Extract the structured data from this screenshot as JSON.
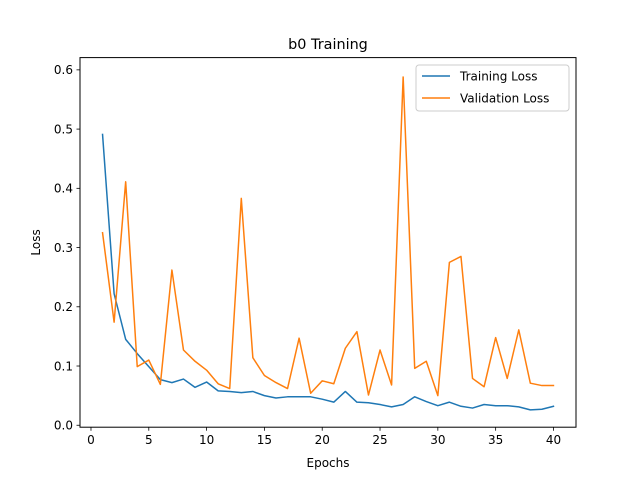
{
  "chart_data": {
    "type": "line",
    "title": "b0 Training",
    "xlabel": "Epochs",
    "ylabel": "Loss",
    "xlim": [
      -0.95,
      41.95
    ],
    "ylim": [
      -0.0033,
      0.6207
    ],
    "x_ticks": [
      0,
      5,
      10,
      15,
      20,
      25,
      30,
      35,
      40
    ],
    "y_ticks": [
      0.0,
      0.1,
      0.2,
      0.3,
      0.4,
      0.5,
      0.6
    ],
    "x_tick_labels": [
      "0",
      "5",
      "10",
      "15",
      "20",
      "25",
      "30",
      "35",
      "40"
    ],
    "y_tick_labels": [
      "0.0",
      "0.1",
      "0.2",
      "0.3",
      "0.4",
      "0.5",
      "0.6"
    ],
    "grid": false,
    "legend_position": "top-right",
    "x": [
      1,
      2,
      3,
      4,
      5,
      6,
      7,
      8,
      9,
      10,
      11,
      12,
      13,
      14,
      15,
      16,
      17,
      18,
      19,
      20,
      21,
      22,
      23,
      24,
      25,
      26,
      27,
      28,
      29,
      30,
      31,
      32,
      33,
      34,
      35,
      36,
      37,
      38,
      39,
      40
    ],
    "series": [
      {
        "name": "Training Loss",
        "color": "#1f77b4",
        "values": [
          0.491,
          0.222,
          0.145,
          0.121,
          0.099,
          0.077,
          0.072,
          0.078,
          0.064,
          0.073,
          0.058,
          0.057,
          0.055,
          0.057,
          0.05,
          0.046,
          0.048,
          0.048,
          0.048,
          0.044,
          0.039,
          0.057,
          0.039,
          0.038,
          0.035,
          0.031,
          0.035,
          0.048,
          0.04,
          0.033,
          0.039,
          0.032,
          0.029,
          0.035,
          0.033,
          0.033,
          0.031,
          0.026,
          0.027,
          0.032
        ]
      },
      {
        "name": "Validation Loss",
        "color": "#ff7f0e",
        "values": [
          0.325,
          0.174,
          0.411,
          0.099,
          0.11,
          0.069,
          0.262,
          0.127,
          0.108,
          0.093,
          0.07,
          0.062,
          0.383,
          0.114,
          0.084,
          0.072,
          0.062,
          0.147,
          0.054,
          0.075,
          0.07,
          0.13,
          0.158,
          0.051,
          0.127,
          0.068,
          0.588,
          0.096,
          0.108,
          0.05,
          0.275,
          0.285,
          0.079,
          0.065,
          0.148,
          0.079,
          0.161,
          0.071,
          0.067,
          0.067
        ]
      }
    ]
  }
}
